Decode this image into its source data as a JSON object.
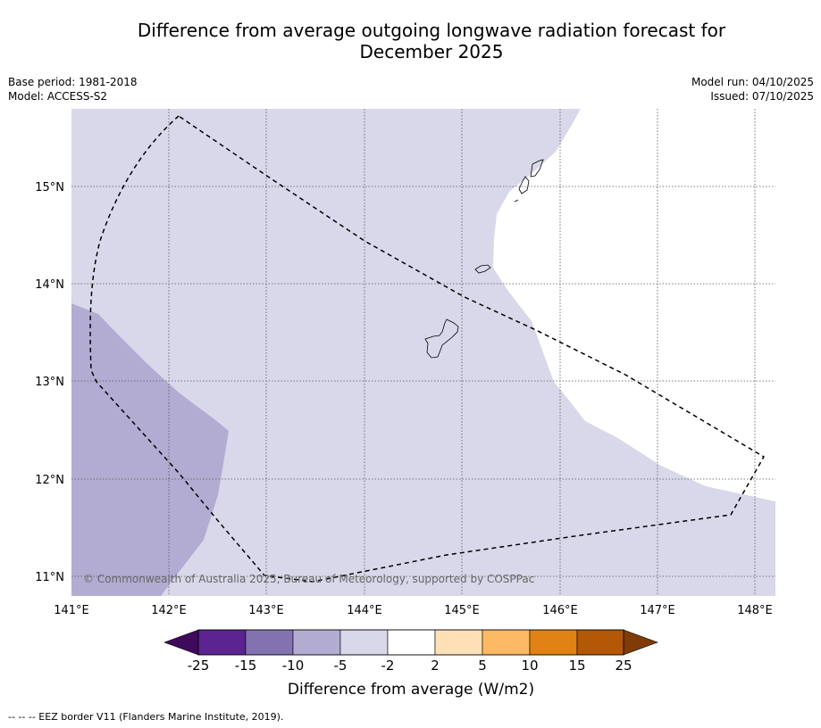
{
  "title_line1": "Difference from average outgoing longwave radiation forecast for",
  "title_line2": "December 2025",
  "meta_left": {
    "base_period": "Base period: 1981-2018",
    "model": "Model: ACCESS-S2"
  },
  "meta_right": {
    "model_run": "Model run: 04/10/2025",
    "issued": "Issued: 07/10/2025"
  },
  "map": {
    "lon_ticks": [
      "141°E",
      "142°E",
      "143°E",
      "144°E",
      "145°E",
      "146°E",
      "147°E",
      "148°E"
    ],
    "lat_ticks": [
      "15°N",
      "14°N",
      "13°N",
      "12°N",
      "11°N"
    ],
    "copyright": "© Commonwealth of Australia 2025, Bureau of Meteorology, supported by COSPPac",
    "fill_colors": {
      "minus5_minus2": "#d8d8ea",
      "minus10_minus5": "#b2acd2",
      "neutral": "#ffffff"
    }
  },
  "colorbar": {
    "title": "Difference from average (W/m2)",
    "labels": [
      "-25",
      "-15",
      "-10",
      "-5",
      "-2",
      "2",
      "5",
      "10",
      "15",
      "25"
    ],
    "colors": [
      "#3f0a5b",
      "#5b2490",
      "#8273b0",
      "#b2acd2",
      "#d8d8ea",
      "#ffffff",
      "#fde0b6",
      "#fdb863",
      "#e08214",
      "#b35806",
      "#7f3b08"
    ]
  },
  "footer": "--  --  -- EEZ border V11 (Flanders Marine Institute, 2019)."
}
